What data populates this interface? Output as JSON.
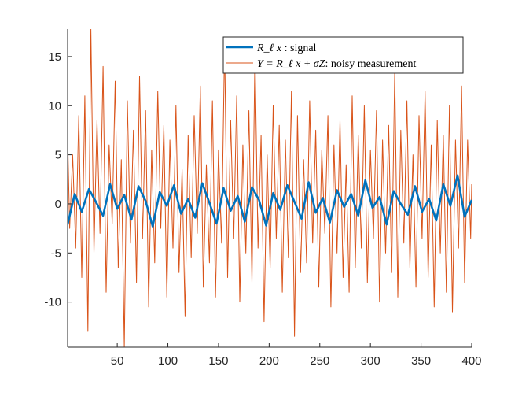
{
  "chart_data": {
    "type": "line",
    "title": "",
    "xlabel": "",
    "ylabel": "",
    "xlim": [
      1,
      400
    ],
    "ylim": [
      -14.6,
      17.8
    ],
    "grid": false,
    "legend_position": "top-right",
    "xticks": [
      50,
      100,
      150,
      200,
      250,
      300,
      350,
      400
    ],
    "yticks": [
      -10,
      -5,
      0,
      5,
      10,
      15
    ],
    "xtick_labels": [
      "50",
      "100",
      "150",
      "200",
      "250",
      "300",
      "350",
      "400"
    ],
    "ytick_labels": [
      "-10",
      "-5",
      "0",
      "5",
      "10",
      "15"
    ],
    "legend": [
      {
        "math": "R_ℓ x",
        "sep": " : ",
        "text": "signal"
      },
      {
        "math": "Y = R_ℓ x + σZ",
        "sep": ": ",
        "text": "noisy measurement"
      }
    ],
    "series": [
      {
        "color": "#0072bd",
        "linewidth": 2.6,
        "x": [
          1,
          8,
          15,
          22,
          29,
          36,
          43,
          50,
          57,
          64,
          71,
          78,
          85,
          92,
          99,
          106,
          113,
          120,
          127,
          134,
          141,
          148,
          155,
          162,
          169,
          176,
          183,
          190,
          197,
          204,
          211,
          218,
          225,
          232,
          239,
          246,
          253,
          260,
          267,
          274,
          281,
          288,
          295,
          302,
          309,
          316,
          323,
          330,
          337,
          344,
          351,
          358,
          365,
          372,
          379,
          386,
          393,
          400
        ],
        "values": [
          -2.1,
          1.0,
          -0.8,
          1.5,
          0.2,
          -1.2,
          2.0,
          -0.5,
          0.9,
          -1.6,
          1.8,
          0.3,
          -2.3,
          1.2,
          -0.2,
          1.9,
          -1.0,
          0.5,
          -1.4,
          2.1,
          0.1,
          -2.0,
          1.6,
          -0.7,
          0.8,
          -1.8,
          1.7,
          0.4,
          -2.2,
          1.1,
          -0.6,
          1.9,
          0.2,
          -1.5,
          2.2,
          -0.9,
          0.6,
          -1.9,
          1.4,
          -0.3,
          1.0,
          -1.2,
          2.4,
          -0.4,
          0.7,
          -2.1,
          1.3,
          0.0,
          -1.1,
          1.8,
          -0.8,
          0.5,
          -1.7,
          2.0,
          -0.2,
          2.9,
          -1.3,
          0.4
        ]
      },
      {
        "color": "#d95319",
        "linewidth": 1.0,
        "x": [
          1,
          3,
          6,
          9,
          12,
          15,
          18,
          21,
          24,
          27,
          30,
          33,
          36,
          39,
          42,
          45,
          48,
          51,
          54,
          57,
          60,
          63,
          66,
          69,
          72,
          75,
          78,
          81,
          84,
          87,
          90,
          93,
          96,
          99,
          102,
          105,
          108,
          111,
          114,
          117,
          120,
          123,
          126,
          129,
          132,
          135,
          138,
          141,
          144,
          147,
          150,
          153,
          156,
          159,
          162,
          165,
          168,
          171,
          174,
          177,
          180,
          183,
          186,
          189,
          192,
          195,
          198,
          201,
          204,
          207,
          210,
          213,
          216,
          219,
          222,
          225,
          228,
          231,
          234,
          237,
          240,
          243,
          246,
          249,
          252,
          255,
          258,
          261,
          264,
          267,
          270,
          273,
          276,
          279,
          282,
          285,
          288,
          291,
          294,
          297,
          300,
          303,
          306,
          309,
          312,
          315,
          318,
          321,
          324,
          327,
          330,
          333,
          336,
          339,
          342,
          345,
          348,
          351,
          354,
          357,
          360,
          363,
          366,
          369,
          372,
          375,
          378,
          381,
          384,
          387,
          390,
          393,
          396,
          399,
          400
        ],
        "values": [
          7.0,
          -2.5,
          5.0,
          -4.5,
          9.0,
          -7.5,
          11.0,
          -13.0,
          17.8,
          -5.0,
          8.5,
          -3.0,
          14.0,
          -9.0,
          6.0,
          -2.0,
          12.5,
          -6.5,
          4.5,
          -14.6,
          10.5,
          -4.0,
          7.5,
          -8.0,
          13.0,
          -3.5,
          9.5,
          -10.5,
          5.5,
          -6.0,
          11.5,
          -2.5,
          8.0,
          -9.5,
          6.5,
          -4.5,
          10.0,
          -7.0,
          3.5,
          -11.5,
          7.0,
          -5.5,
          9.0,
          -3.0,
          12.0,
          -8.5,
          4.0,
          -6.0,
          10.5,
          -9.5,
          5.5,
          -4.0,
          16.5,
          -7.5,
          8.5,
          -3.5,
          11.0,
          -10.0,
          6.0,
          -5.0,
          9.5,
          -8.0,
          15.5,
          -4.5,
          7.0,
          -12.0,
          5.0,
          -6.5,
          10.0,
          -3.5,
          8.0,
          -9.0,
          6.5,
          -5.5,
          11.5,
          -13.5,
          9.0,
          -7.0,
          4.5,
          -6.0,
          10.5,
          -4.0,
          7.5,
          -8.5,
          5.5,
          -3.0,
          9.0,
          -10.5,
          6.0,
          -5.0,
          8.5,
          -7.5,
          4.0,
          -9.0,
          11.0,
          -6.5,
          7.0,
          -4.5,
          10.0,
          -8.0,
          5.5,
          -3.5,
          9.5,
          -10.0,
          6.5,
          -5.0,
          8.0,
          -7.0,
          13.5,
          -9.5,
          7.5,
          -4.0,
          10.5,
          -6.5,
          5.0,
          -8.5,
          9.0,
          -3.5,
          11.5,
          -7.5,
          6.0,
          -10.5,
          8.5,
          -5.0,
          7.0,
          -9.0,
          10.0,
          -11.0,
          6.5,
          -4.5,
          12.0,
          -8.0,
          6.5,
          -3.5,
          2.0
        ]
      }
    ]
  }
}
